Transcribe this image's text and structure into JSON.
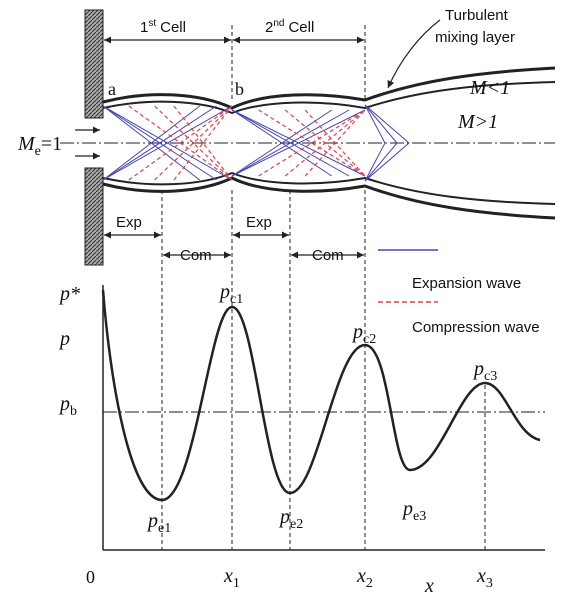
{
  "labels": {
    "cell1": {
      "num": "1",
      "sup": "st",
      "rest": "Cell"
    },
    "cell2": {
      "num": "2",
      "sup": "nd",
      "rest": "Cell"
    },
    "turbulent": [
      "Turbulent",
      "mixing layer"
    ],
    "point_a": "a",
    "point_b": "b",
    "mach_sub": "M<1",
    "mach_sup": "M>1",
    "mach_exit": {
      "base": "M",
      "sub": "e",
      "rest": "=1"
    },
    "phases": [
      "Exp",
      "Com",
      "Exp",
      "Com"
    ],
    "legend": {
      "expansion": "Expansion wave",
      "compression": "Compression wave"
    }
  },
  "plot": {
    "p_star": "p*",
    "p": "p",
    "p_b": {
      "base": "p",
      "sub": "b"
    },
    "peaks": [
      {
        "base": "p",
        "sub": "c1"
      },
      {
        "base": "p",
        "sub": "c2"
      },
      {
        "base": "p",
        "sub": "c3"
      }
    ],
    "troughs": [
      {
        "base": "p",
        "sub": "e1"
      },
      {
        "base": "p",
        "sub": "e2"
      },
      {
        "base": "p",
        "sub": "e3"
      }
    ],
    "origin": "0",
    "x_ticks": [
      {
        "base": "x",
        "sub": "1"
      },
      {
        "base": "x",
        "sub": "2"
      },
      {
        "base": "x",
        "sub": "3"
      }
    ],
    "x_label": "x"
  }
}
